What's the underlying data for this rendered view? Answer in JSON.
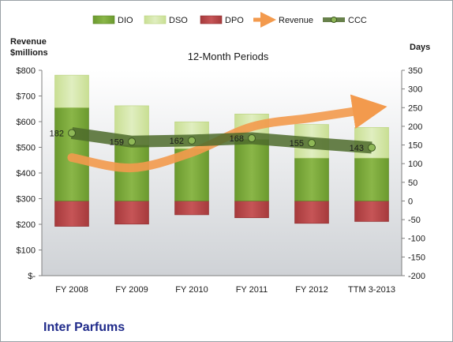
{
  "chart_data": {
    "type": "bar",
    "title": "12-Month Periods",
    "categories": [
      "FY 2008",
      "FY 2009",
      "FY 2010",
      "FY 2011",
      "FY 2012",
      "TTM 3-2013"
    ],
    "left_axis": {
      "label_line1": "Revenue",
      "label_line2": "$millions",
      "ylim": [
        0,
        800
      ],
      "ticks": [
        0,
        100,
        200,
        300,
        400,
        500,
        600,
        700,
        800
      ],
      "tick_labels": [
        "$-",
        "$100",
        "$200",
        "$300",
        "$400",
        "$500",
        "$600",
        "$700",
        "$800"
      ]
    },
    "right_axis": {
      "label": "Days",
      "ylim": [
        -200,
        350
      ],
      "ticks": [
        -200,
        -150,
        -100,
        -50,
        0,
        50,
        100,
        150,
        200,
        250,
        300,
        350
      ],
      "tick_labels": [
        "-200",
        "-150",
        "-100",
        "-50",
        "0",
        "50",
        "100",
        "150",
        "200",
        "250",
        "300",
        "350"
      ]
    },
    "series": [
      {
        "name": "DIO",
        "axis": "days",
        "kind": "stacked-bar",
        "values": [
          250,
          150,
          140,
          165,
          115,
          115
        ]
      },
      {
        "name": "DSO",
        "axis": "days",
        "kind": "stacked-bar",
        "values": [
          87,
          105,
          72,
          68,
          90,
          82
        ]
      },
      {
        "name": "DPO",
        "axis": "days",
        "kind": "negative-bar",
        "values": [
          -68,
          -62,
          -37,
          -45,
          -60,
          -55
        ]
      },
      {
        "name": "Revenue",
        "axis": "revenue",
        "kind": "arrow-line",
        "values": [
          460,
          420,
          480,
          580,
          615,
          650
        ]
      },
      {
        "name": "CCC",
        "axis": "days",
        "kind": "line",
        "values": [
          182,
          159,
          162,
          168,
          155,
          143
        ],
        "labels": [
          "182",
          "159",
          "162",
          "168",
          "155",
          "143"
        ]
      }
    ],
    "legend": {
      "position": "top"
    },
    "grid": false
  },
  "footer": {
    "company": "Inter Parfums"
  },
  "colors": {
    "dio": "#79a33a",
    "dso": "#d4e6a6",
    "dpo": "#b84446",
    "revenue": "#f39a4d",
    "ccc": "#4e6b2c",
    "plot_top": "#ffffff",
    "plot_bottom": "#cfd2d6"
  }
}
